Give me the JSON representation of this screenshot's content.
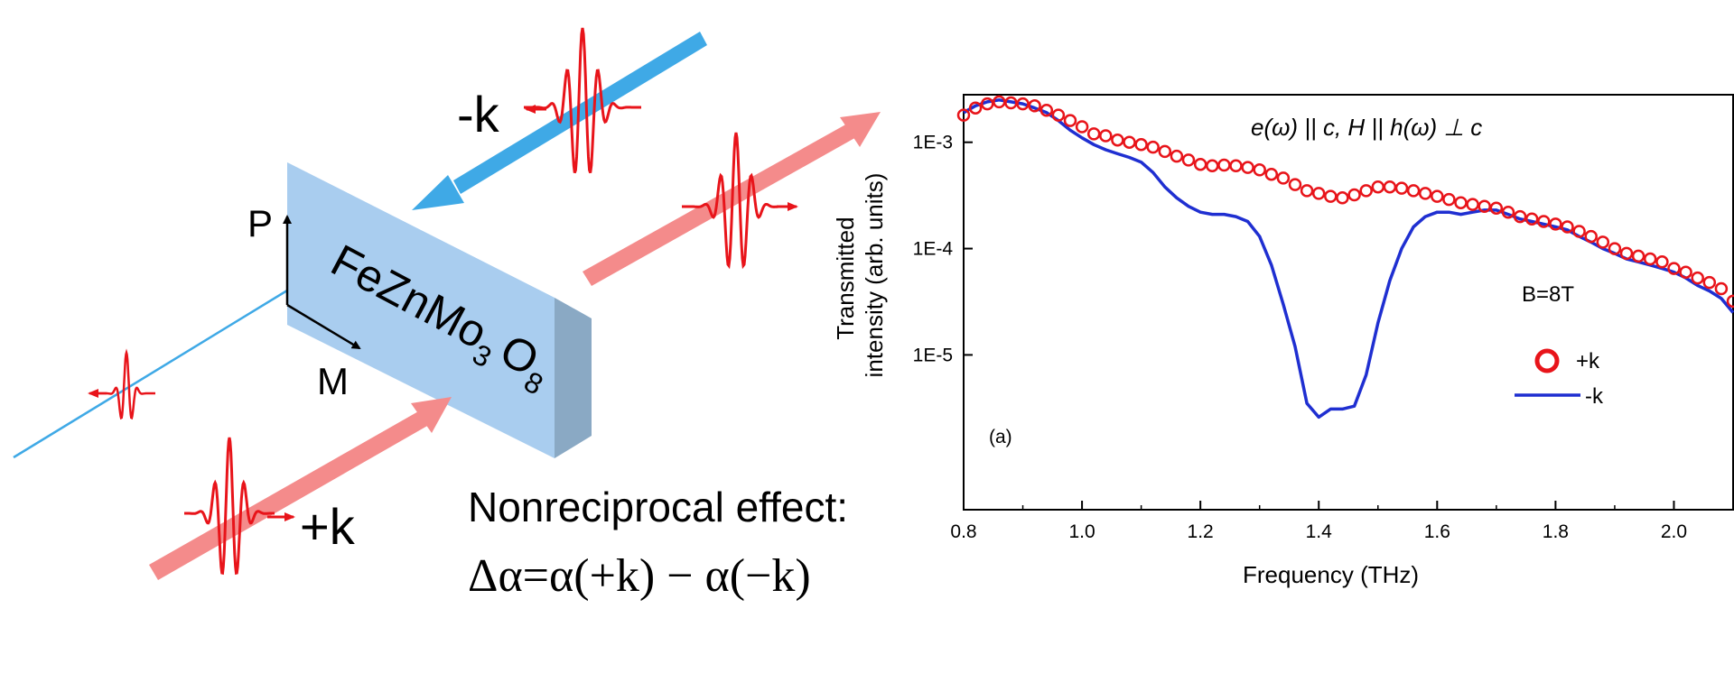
{
  "illustration": {
    "labels": {
      "minus_k": "-k",
      "plus_k": "+k",
      "p": "P",
      "m": "M",
      "crystal_main": "FeZnMo",
      "crystal_sub1": "3",
      "crystal_o": "O",
      "crystal_sub2": "8"
    },
    "caption_title": "Nonreciprocal effect:",
    "caption_formula": "Δα=α(+k) − α(−k)",
    "colors": {
      "blue_beam": "#3fa9e6",
      "red_beam": "#f48b8b",
      "wave": "#e8141a",
      "crystal_front": "#a9cdef",
      "crystal_top": "#c5ddf5",
      "crystal_side": "#8aa9c4"
    }
  },
  "chart_data": {
    "type": "line",
    "panel_label": "(a)",
    "annotation": "e(ω) || c,  H || h(ω) ⊥ c",
    "field_label": "B=8T",
    "xlabel": "Frequency (THz)",
    "ylabel_line1": "Transmitted",
    "ylabel_line2": "intensity (arb. units)",
    "xlim": [
      0.8,
      2.1
    ],
    "ylim": [
      3.5e-07,
      0.0028
    ],
    "y_scale": "log",
    "x_ticks": [
      0.8,
      1.0,
      1.2,
      1.4,
      1.6,
      1.8,
      2.0
    ],
    "x_tick_labels": [
      "0.8",
      "1.0",
      "1.2",
      "1.4",
      "1.6",
      "1.8",
      "2.0"
    ],
    "y_ticks": [
      1e-05,
      0.0001,
      0.001
    ],
    "y_tick_labels": [
      "1E-5",
      "1E-4",
      "1E-3"
    ],
    "legend_position": "right",
    "series": [
      {
        "name": "+k",
        "style": "markers",
        "color": "#e8141a",
        "x": [
          0.8,
          0.82,
          0.84,
          0.86,
          0.88,
          0.9,
          0.92,
          0.94,
          0.96,
          0.98,
          1.0,
          1.02,
          1.04,
          1.06,
          1.08,
          1.1,
          1.12,
          1.14,
          1.16,
          1.18,
          1.2,
          1.22,
          1.24,
          1.26,
          1.28,
          1.3,
          1.32,
          1.34,
          1.36,
          1.38,
          1.4,
          1.42,
          1.44,
          1.46,
          1.48,
          1.5,
          1.52,
          1.54,
          1.56,
          1.58,
          1.6,
          1.62,
          1.64,
          1.66,
          1.68,
          1.7,
          1.72,
          1.74,
          1.76,
          1.78,
          1.8,
          1.82,
          1.84,
          1.86,
          1.88,
          1.9,
          1.92,
          1.94,
          1.96,
          1.98,
          2.0,
          2.02,
          2.04,
          2.06,
          2.08,
          2.1
        ],
        "y": [
          0.0018,
          0.0021,
          0.0023,
          0.0024,
          0.00235,
          0.0023,
          0.0022,
          0.002,
          0.0018,
          0.0016,
          0.0014,
          0.0012,
          0.00115,
          0.00105,
          0.001,
          0.00095,
          0.0009,
          0.00082,
          0.00074,
          0.00068,
          0.00062,
          0.0006,
          0.00061,
          0.0006,
          0.00058,
          0.00055,
          0.0005,
          0.00046,
          0.0004,
          0.00035,
          0.00033,
          0.00031,
          0.0003,
          0.00032,
          0.00035,
          0.00038,
          0.00038,
          0.00037,
          0.00035,
          0.00033,
          0.00031,
          0.00029,
          0.00027,
          0.00026,
          0.00025,
          0.00024,
          0.00022,
          0.0002,
          0.00019,
          0.00018,
          0.00017,
          0.00016,
          0.000145,
          0.00013,
          0.000115,
          0.0001,
          9e-05,
          8.5e-05,
          8e-05,
          7.5e-05,
          6.5e-05,
          6e-05,
          5.3e-05,
          4.8e-05,
          4.2e-05,
          3.2e-05
        ]
      },
      {
        "name": "-k",
        "style": "line",
        "color": "#1f2fd1",
        "x": [
          0.8,
          0.82,
          0.84,
          0.86,
          0.88,
          0.9,
          0.92,
          0.94,
          0.96,
          0.98,
          1.0,
          1.02,
          1.04,
          1.06,
          1.08,
          1.1,
          1.12,
          1.14,
          1.16,
          1.18,
          1.2,
          1.22,
          1.24,
          1.26,
          1.28,
          1.3,
          1.32,
          1.34,
          1.36,
          1.38,
          1.4,
          1.42,
          1.44,
          1.46,
          1.48,
          1.5,
          1.52,
          1.54,
          1.56,
          1.58,
          1.6,
          1.62,
          1.64,
          1.66,
          1.68,
          1.7,
          1.72,
          1.74,
          1.76,
          1.78,
          1.8,
          1.82,
          1.84,
          1.86,
          1.88,
          1.9,
          1.92,
          1.94,
          1.96,
          1.98,
          2.0,
          2.02,
          2.04,
          2.06,
          2.08,
          2.1
        ],
        "y": [
          0.0019,
          0.0022,
          0.0024,
          0.0025,
          0.0024,
          0.0023,
          0.0021,
          0.0019,
          0.0016,
          0.0013,
          0.0011,
          0.00095,
          0.00085,
          0.00078,
          0.00072,
          0.00065,
          0.00052,
          0.00038,
          0.0003,
          0.00025,
          0.00022,
          0.00021,
          0.00021,
          0.0002,
          0.00018,
          0.00013,
          7e-05,
          3e-05,
          1.2e-05,
          3.5e-06,
          2.6e-06,
          3.1e-06,
          3.1e-06,
          3.3e-06,
          6.5e-06,
          2e-05,
          5e-05,
          0.0001,
          0.00016,
          0.0002,
          0.00022,
          0.00022,
          0.00021,
          0.00022,
          0.00023,
          0.00023,
          0.00021,
          0.00019,
          0.00018,
          0.00017,
          0.00016,
          0.00015,
          0.00013,
          0.000115,
          0.0001,
          9e-05,
          8e-05,
          7.5e-05,
          7e-05,
          6.5e-05,
          6e-05,
          5.3e-05,
          4.5e-05,
          4e-05,
          3.4e-05,
          2.5e-05
        ]
      }
    ]
  }
}
